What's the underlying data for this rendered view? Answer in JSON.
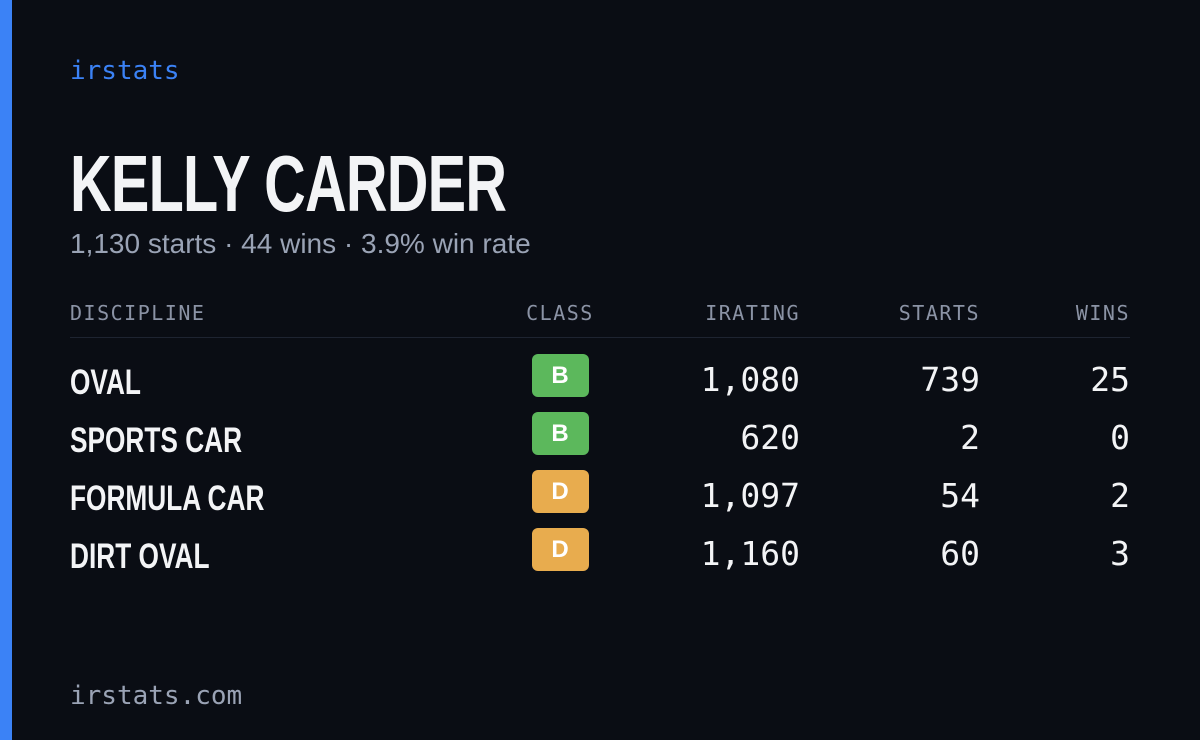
{
  "brand": "irstats",
  "driver": {
    "name": "KELLY CARDER",
    "summary": "1,130 starts · 44 wins · 3.9% win rate"
  },
  "table": {
    "headers": [
      "DISCIPLINE",
      "CLASS",
      "IRATING",
      "STARTS",
      "WINS"
    ],
    "rows": [
      {
        "discipline": "OVAL",
        "class": "B",
        "class_color": "#5cb85c",
        "irating": "1,080",
        "starts": "739",
        "wins": "25"
      },
      {
        "discipline": "SPORTS CAR",
        "class": "B",
        "class_color": "#5cb85c",
        "irating": "620",
        "starts": "2",
        "wins": "0"
      },
      {
        "discipline": "FORMULA CAR",
        "class": "D",
        "class_color": "#e8ac4e",
        "irating": "1,097",
        "starts": "54",
        "wins": "2"
      },
      {
        "discipline": "DIRT OVAL",
        "class": "D",
        "class_color": "#e8ac4e",
        "irating": "1,160",
        "starts": "60",
        "wins": "3"
      }
    ]
  },
  "footer": "irstats.com"
}
